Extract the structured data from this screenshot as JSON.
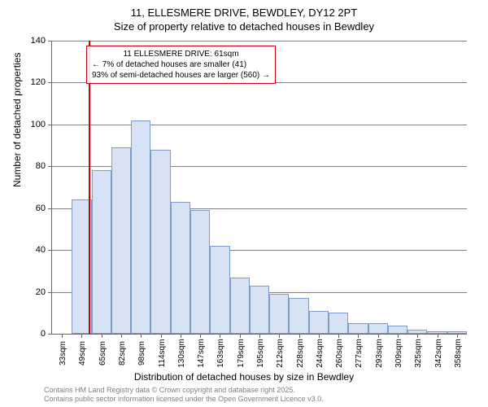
{
  "title": "11, ELLESMERE DRIVE, BEWDLEY, DY12 2PT",
  "subtitle": "Size of property relative to detached houses in Bewdley",
  "chart": {
    "type": "histogram",
    "y_axis_title": "Number of detached properties",
    "x_axis_title": "Distribution of detached houses by size in Bewdley",
    "ylim": [
      0,
      140
    ],
    "ytick_step": 20,
    "x_categories": [
      "33sqm",
      "49sqm",
      "65sqm",
      "82sqm",
      "98sqm",
      "114sqm",
      "130sqm",
      "147sqm",
      "163sqm",
      "179sqm",
      "195sqm",
      "212sqm",
      "228sqm",
      "244sqm",
      "260sqm",
      "277sqm",
      "293sqm",
      "309sqm",
      "325sqm",
      "342sqm",
      "358sqm"
    ],
    "values": [
      0,
      64,
      78,
      89,
      102,
      88,
      63,
      59,
      42,
      27,
      23,
      19,
      17,
      11,
      10,
      5,
      5,
      4,
      2,
      1,
      1
    ],
    "bar_fill": "#d7e3f4",
    "bar_stroke": "#7e9cc8",
    "grid_color": "#808080",
    "background_color": "#ffffff",
    "marker_line_color": "#d00010",
    "marker_position_category_index": 1.85,
    "annotation": {
      "line1": "11 ELLESMERE DRIVE: 61sqm",
      "line2": "← 7% of detached houses are smaller (41)",
      "line3": "93% of semi-detached houses are larger (560) →",
      "border_color": "#d00010"
    },
    "title_fontsize": 13,
    "label_fontsize": 11
  },
  "attribution": {
    "line1": "Contains HM Land Registry data © Crown copyright and database right 2025.",
    "line2": "Contains public sector information licensed under the Open Government Licence v3.0."
  }
}
